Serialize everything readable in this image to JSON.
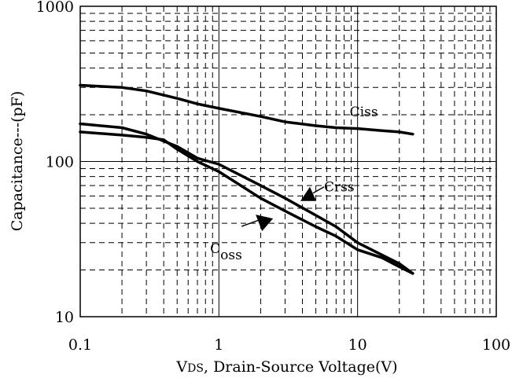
{
  "chart_data": {
    "type": "line",
    "title": "",
    "xlabel": "VDS, Drain-Source Voltage(V)",
    "xlabel_parts": {
      "v": "V",
      "sub": "DS",
      "rest": ", Drain-Source Voltage(V)"
    },
    "ylabel": "Capacitance---(pF)",
    "x_scale": "log",
    "y_scale": "log",
    "xlim": [
      0.1,
      100
    ],
    "ylim": [
      10,
      1000
    ],
    "x_ticks": [
      0.1,
      1,
      10,
      100
    ],
    "x_tick_labels": [
      "0.1",
      "1",
      "10",
      "100"
    ],
    "y_ticks": [
      10,
      100,
      1000
    ],
    "y_tick_labels": [
      "10",
      "100",
      "1000"
    ],
    "grid": true,
    "legend": "none",
    "line_color": "#000000",
    "series": [
      {
        "name": "Ciss",
        "x": [
          0.1,
          0.2,
          0.3,
          0.5,
          0.7,
          1,
          2,
          3,
          5,
          7,
          10,
          15,
          20,
          25
        ],
        "y": [
          310,
          300,
          285,
          255,
          235,
          220,
          195,
          180,
          170,
          165,
          163,
          158,
          155,
          150
        ]
      },
      {
        "name": "Crss",
        "x": [
          0.1,
          0.2,
          0.3,
          0.5,
          0.7,
          1,
          2,
          3,
          5,
          7,
          10,
          15,
          20,
          25
        ],
        "y": [
          175,
          165,
          150,
          125,
          105,
          96,
          70,
          58,
          45,
          38,
          30,
          25,
          22,
          19
        ]
      },
      {
        "name": "Coss",
        "x": [
          0.1,
          0.2,
          0.3,
          0.4,
          0.5,
          0.7,
          1,
          2,
          3,
          5,
          7,
          10,
          15,
          20,
          25
        ],
        "y": [
          155,
          148,
          143,
          138,
          120,
          100,
          86,
          58,
          48,
          38,
          33,
          27,
          24,
          21,
          19
        ]
      }
    ],
    "annotations": [
      {
        "text": "Ciss",
        "target": "Ciss"
      },
      {
        "text": "Crss",
        "target": "Crss"
      },
      {
        "text": "C",
        "sub": "oss",
        "target": "Coss"
      }
    ]
  }
}
